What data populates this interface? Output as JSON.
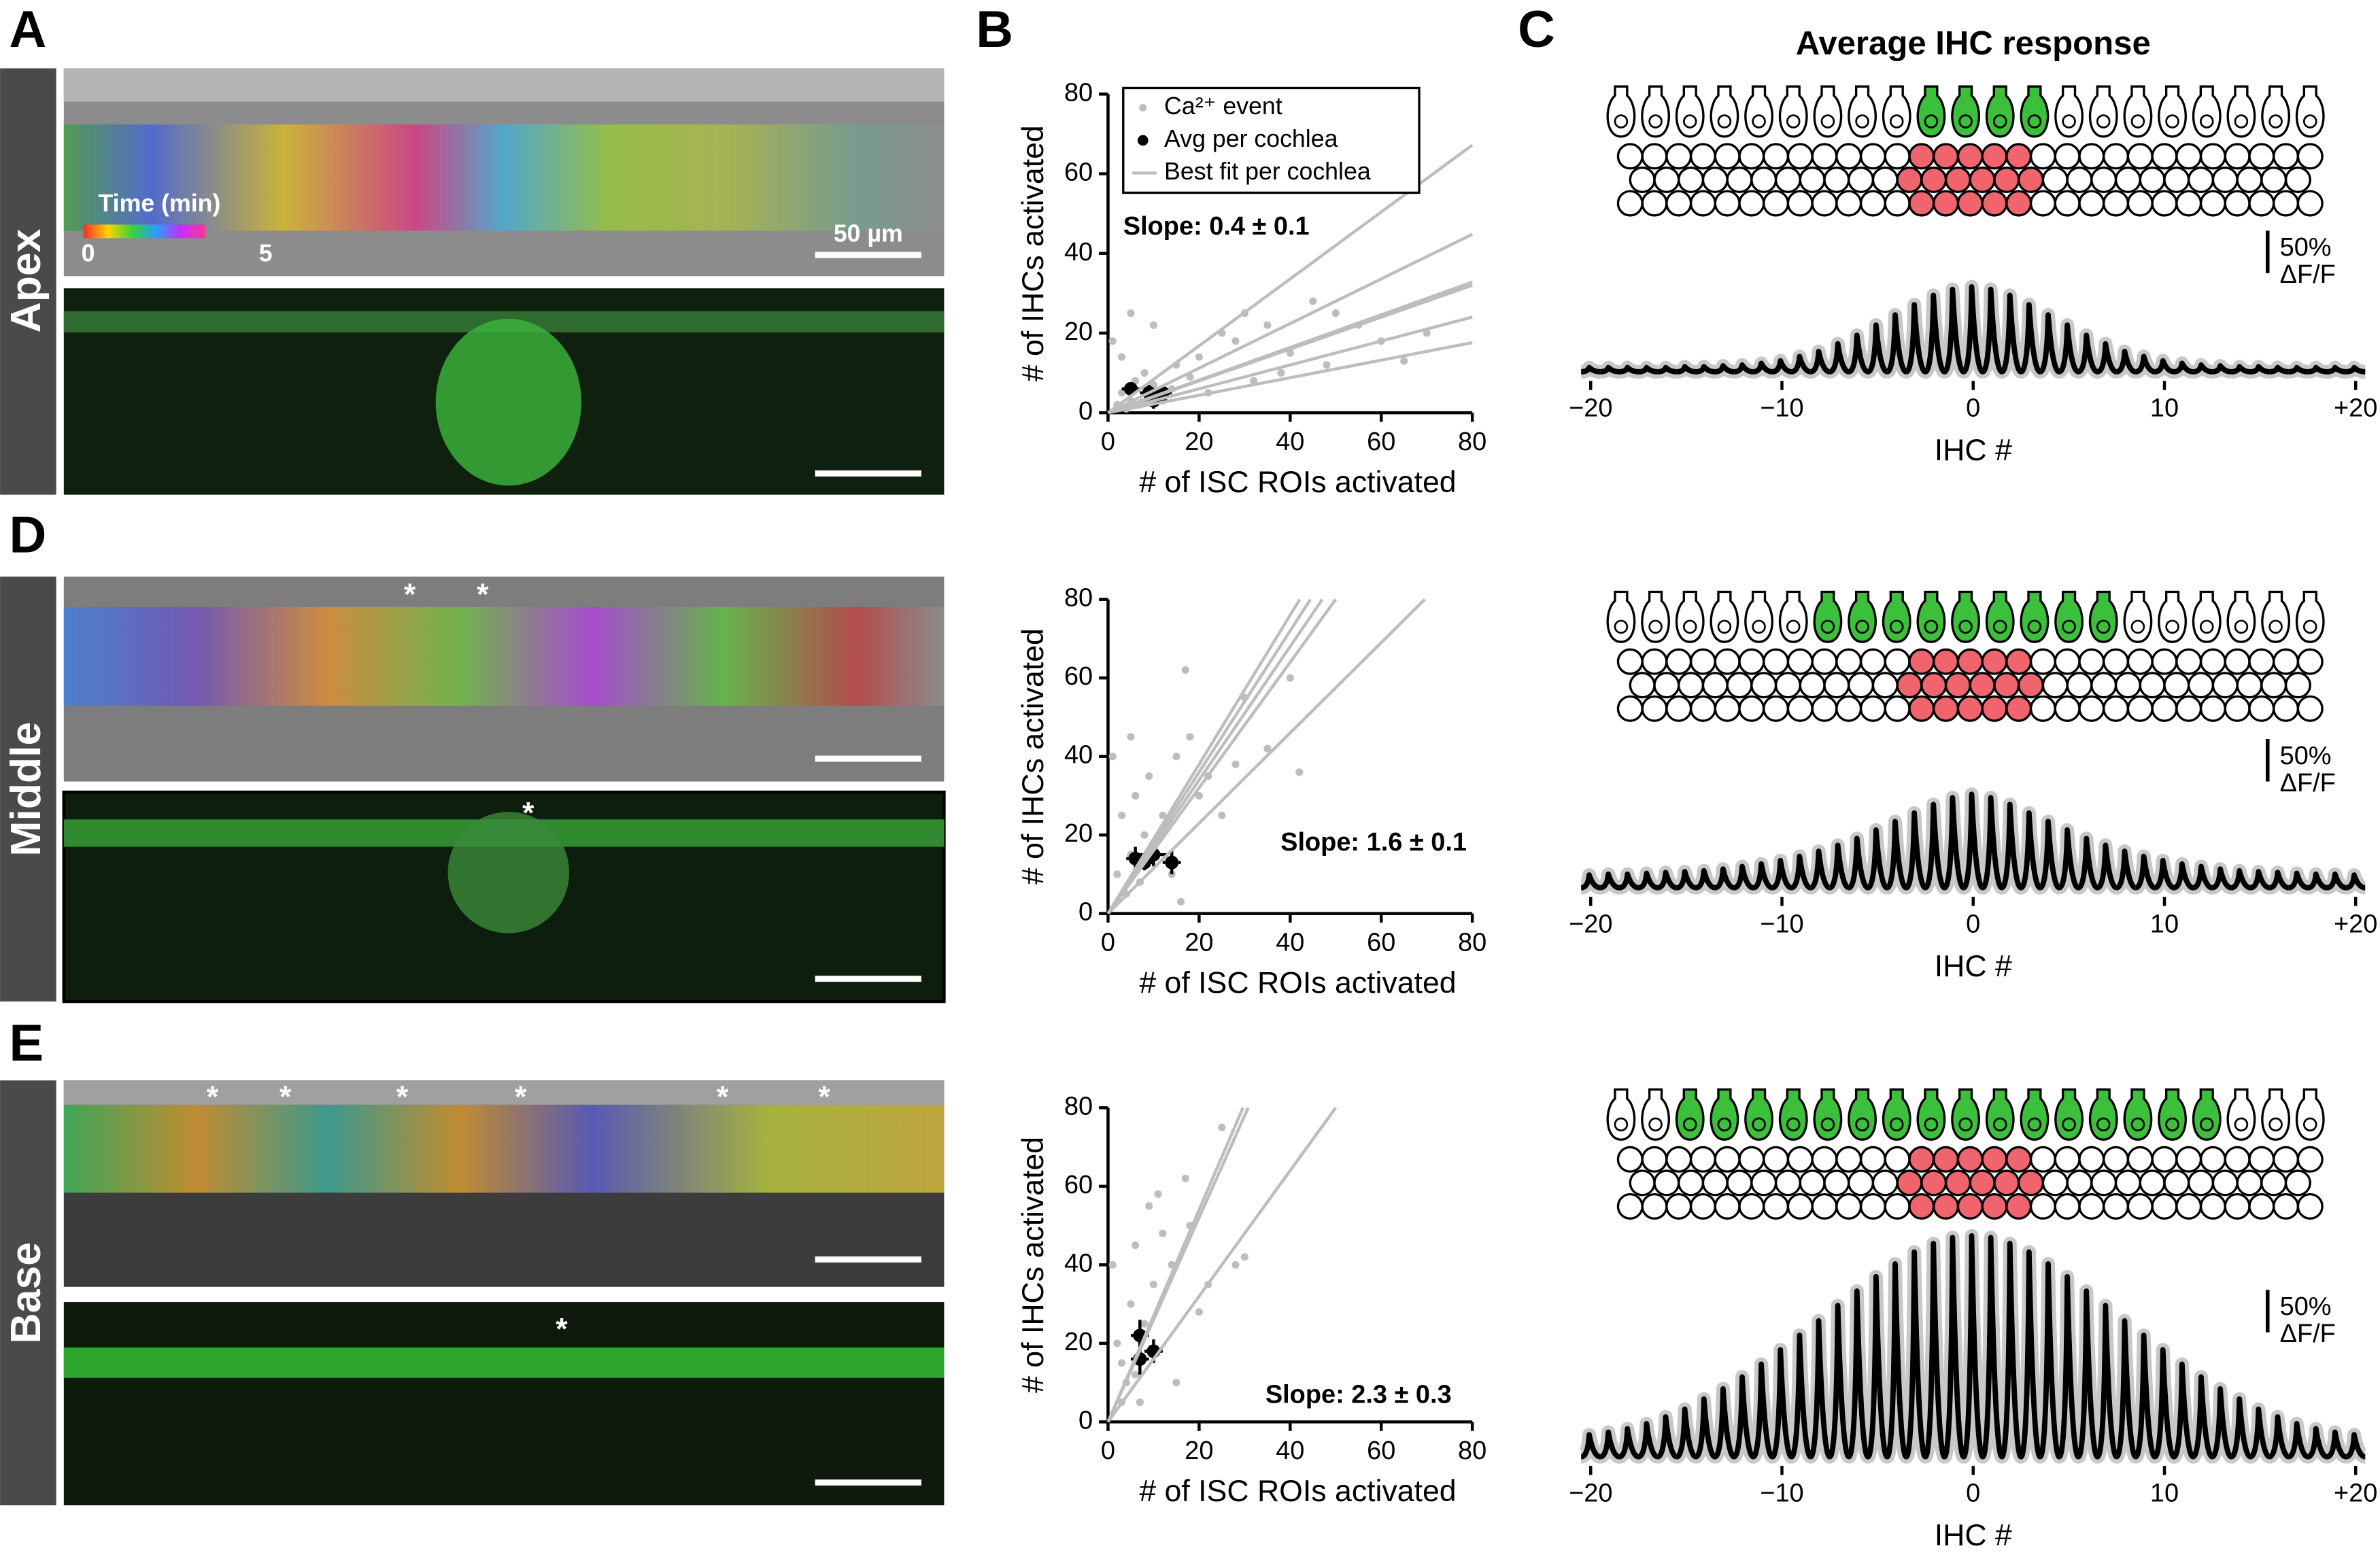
{
  "panel_labels": [
    "A",
    "B",
    "C",
    "D",
    "E"
  ],
  "regions": [
    "Apex",
    "Middle",
    "Base"
  ],
  "micrographs": {
    "colorbar_title": "Time (min)",
    "colorbar_ticks": [
      0,
      5
    ],
    "scale_bar": "50 µm",
    "asterisk": "*"
  },
  "response_title": "Average IHC response",
  "chart_data": [
    {
      "type": "scatter",
      "xlabel": "# of ISC ROIs activated",
      "ylabel": "# of IHCs activated",
      "xlim": [
        0,
        80
      ],
      "ylim": [
        0,
        80
      ],
      "xticks": [
        0,
        20,
        40,
        60,
        80
      ],
      "yticks": [
        0,
        20,
        40,
        60,
        80
      ],
      "annotation": "Slope: 0.4 ± 0.1",
      "legend": "upper left",
      "series": [
        {
          "name": "Ca²⁺ event",
          "color": "#bdbdbd",
          "x": [
            2,
            3,
            4,
            5,
            6,
            7,
            8,
            9,
            10,
            12,
            14,
            15,
            18,
            20,
            22,
            25,
            28,
            30,
            32,
            35,
            38,
            40,
            45,
            48,
            50,
            55,
            60,
            65,
            70,
            1,
            3,
            5,
            10
          ],
          "values": [
            2,
            5,
            1,
            3,
            8,
            2,
            10,
            4,
            7,
            3,
            6,
            12,
            9,
            14,
            5,
            20,
            18,
            25,
            8,
            22,
            10,
            15,
            28,
            12,
            25,
            22,
            18,
            13,
            20,
            18,
            14,
            25,
            22
          ]
        },
        {
          "name": "Avg per cochlea",
          "color": "#000000",
          "x": [
            5,
            9,
            10,
            12
          ],
          "values": [
            6,
            5,
            3,
            5
          ],
          "xerr": [
            2,
            2,
            3,
            2
          ],
          "yerr": [
            1,
            2,
            2,
            1
          ]
        },
        {
          "name": "Best fit per cochlea",
          "color": "#bdbdbd",
          "slopes": [
            0.84,
            0.56,
            0.41,
            0.4,
            0.3,
            0.22
          ]
        }
      ]
    },
    {
      "type": "scatter",
      "xlabel": "# of ISC ROIs activated",
      "ylabel": "# of IHCs activated",
      "xlim": [
        0,
        80
      ],
      "ylim": [
        0,
        80
      ],
      "xticks": [
        0,
        20,
        40,
        60,
        80
      ],
      "yticks": [
        0,
        20,
        40,
        60,
        80
      ],
      "annotation": "Slope: 1.6 ± 0.1",
      "series": [
        {
          "color": "#bdbdbd",
          "x": [
            1,
            2,
            3,
            4,
            5,
            6,
            7,
            8,
            9,
            10,
            12,
            14,
            15,
            16,
            18,
            20,
            22,
            25,
            28,
            30,
            35,
            40,
            42,
            17,
            5
          ],
          "values": [
            40,
            10,
            25,
            5,
            15,
            30,
            8,
            20,
            35,
            18,
            25,
            10,
            40,
            3,
            45,
            30,
            35,
            25,
            38,
            55,
            42,
            60,
            36,
            62,
            45
          ]
        },
        {
          "color": "#000000",
          "x": [
            6,
            8,
            10,
            14
          ],
          "values": [
            14,
            13,
            15,
            13
          ],
          "xerr": [
            2,
            2,
            3,
            2
          ],
          "yerr": [
            3,
            2,
            3,
            3
          ]
        },
        {
          "color": "#bdbdbd",
          "slopes": [
            1.9,
            1.8,
            1.7,
            1.6,
            1.15
          ]
        }
      ]
    },
    {
      "type": "scatter",
      "xlabel": "# of ISC ROIs activated",
      "ylabel": "# of IHCs activated",
      "xlim": [
        0,
        80
      ],
      "ylim": [
        0,
        80
      ],
      "xticks": [
        0,
        20,
        40,
        60,
        80
      ],
      "yticks": [
        0,
        20,
        40,
        60,
        80
      ],
      "annotation": "Slope: 2.3 ± 0.3",
      "series": [
        {
          "color": "#bdbdbd",
          "x": [
            1,
            2,
            3,
            4,
            5,
            6,
            7,
            8,
            9,
            10,
            12,
            14,
            15,
            17,
            18,
            20,
            22,
            25,
            28,
            30,
            11,
            3,
            6
          ],
          "values": [
            40,
            20,
            15,
            10,
            30,
            45,
            5,
            25,
            55,
            35,
            48,
            40,
            10,
            62,
            50,
            28,
            35,
            75,
            40,
            42,
            58,
            5,
            12
          ]
        },
        {
          "color": "#000000",
          "x": [
            7,
            7,
            10
          ],
          "values": [
            22,
            16,
            18
          ],
          "xerr": [
            2,
            2,
            2
          ],
          "yerr": [
            4,
            4,
            3
          ]
        },
        {
          "color": "#bdbdbd",
          "slopes": [
            2.7,
            2.6,
            1.6
          ]
        }
      ]
    },
    {
      "type": "response",
      "xlabel": "IHC #",
      "xlim": [
        -20,
        20
      ],
      "xticks": [
        {
          "value": -20,
          "label": "−20"
        },
        {
          "value": -10,
          "label": "−10"
        },
        0,
        10,
        {
          "value": 20,
          "label": "+20"
        }
      ],
      "x": [
        -20,
        -19,
        -18,
        -17,
        -16,
        -15,
        -14,
        -13,
        -12,
        -11,
        -10,
        -9,
        -8,
        -7,
        -6,
        -5,
        -4,
        -3,
        -2,
        -1,
        0,
        1,
        2,
        3,
        4,
        5,
        6,
        7,
        8,
        9,
        10,
        11,
        12,
        13,
        14,
        15,
        16,
        17,
        18,
        19,
        20
      ],
      "values": [
        5,
        5,
        5,
        5,
        5,
        6,
        6,
        7,
        8,
        10,
        13,
        18,
        24,
        33,
        43,
        55,
        67,
        79,
        90,
        97,
        100,
        97,
        90,
        79,
        67,
        55,
        43,
        33,
        24,
        18,
        13,
        10,
        8,
        7,
        6,
        6,
        5,
        5,
        5,
        5,
        5
      ],
      "color": "#000000",
      "band_color": "#c8c8c8",
      "scale_bar": {
        "value": 50,
        "label": "50%",
        "unit": "ΔF/F"
      },
      "active_ihcs": [
        -1,
        0,
        1,
        2
      ]
    },
    {
      "type": "response",
      "xlabel": "IHC #",
      "xlim": [
        -20,
        20
      ],
      "xticks": [
        {
          "value": -20,
          "label": "−20"
        },
        {
          "value": -10,
          "label": "−10"
        },
        0,
        10,
        {
          "value": 20,
          "label": "+20"
        }
      ],
      "x": [
        -20,
        -19,
        -18,
        -17,
        -16,
        -15,
        -14,
        -13,
        -12,
        -11,
        -10,
        -9,
        -8,
        -7,
        -6,
        -5,
        -4,
        -3,
        -2,
        -1,
        0,
        1,
        2,
        3,
        4,
        5,
        6,
        7,
        8,
        9,
        10,
        11,
        12,
        13,
        14,
        15,
        16,
        17,
        18,
        19,
        20
      ],
      "values": [
        15,
        16,
        16,
        17,
        18,
        19,
        20,
        22,
        25,
        28,
        32,
        37,
        43,
        50,
        58,
        68,
        78,
        88,
        98,
        106,
        110,
        106,
        98,
        88,
        78,
        68,
        58,
        50,
        43,
        37,
        32,
        28,
        25,
        22,
        20,
        19,
        18,
        17,
        16,
        16,
        15
      ],
      "color": "#000000",
      "band_color": "#c8c8c8",
      "scale_bar": {
        "value": 50,
        "label": "50%",
        "unit": "ΔF/F"
      },
      "active_ihcs": [
        -4,
        -3,
        -2,
        -1,
        0,
        1,
        2,
        3,
        4
      ]
    },
    {
      "type": "response",
      "xlabel": "IHC #",
      "xlim": [
        -20,
        20
      ],
      "xticks": [
        {
          "value": -20,
          "label": "−20"
        },
        {
          "value": -10,
          "label": "−10"
        },
        0,
        10,
        {
          "value": 20,
          "label": "+20"
        }
      ],
      "x": [
        -20,
        -19,
        -18,
        -17,
        -16,
        -15,
        -14,
        -13,
        -12,
        -11,
        -10,
        -9,
        -8,
        -7,
        -6,
        -5,
        -4,
        -3,
        -2,
        -1,
        0,
        1,
        2,
        3,
        4,
        5,
        6,
        7,
        8,
        9,
        10,
        11,
        12,
        13,
        14,
        15,
        16,
        17,
        18,
        19,
        20
      ],
      "values": [
        26,
        29,
        33,
        39,
        47,
        56,
        68,
        80,
        94,
        109,
        126,
        143,
        160,
        178,
        195,
        212,
        227,
        241,
        251,
        258,
        260,
        258,
        251,
        241,
        227,
        212,
        195,
        178,
        160,
        143,
        126,
        109,
        94,
        80,
        68,
        56,
        47,
        39,
        33,
        29,
        26
      ],
      "color": "#000000",
      "band_color": "#c8c8c8",
      "scale_bar": {
        "value": 50,
        "label": "50%",
        "unit": "ΔF/F"
      },
      "active_ihcs": [
        -8,
        -7,
        -6,
        -5,
        -4,
        -3,
        -2,
        -1,
        0,
        1,
        2,
        3,
        4,
        5,
        6,
        7
      ]
    }
  ]
}
